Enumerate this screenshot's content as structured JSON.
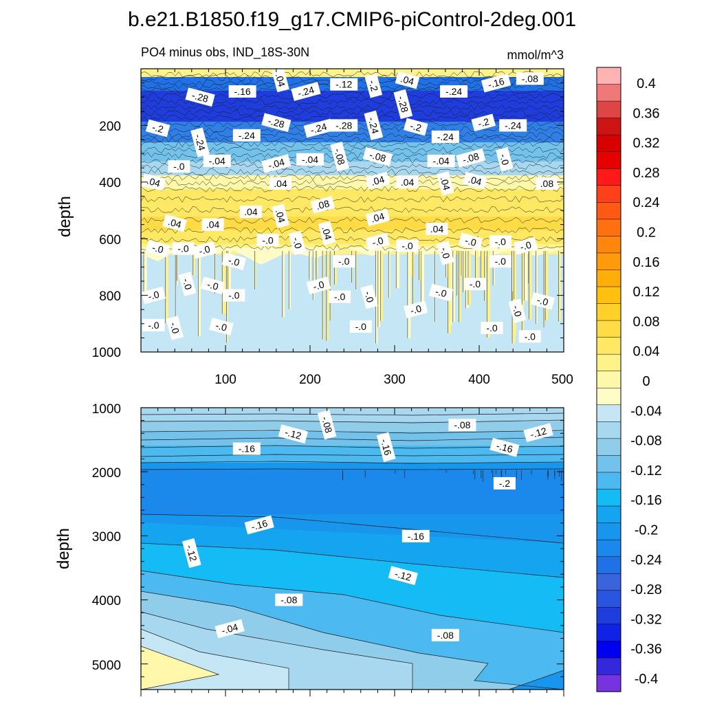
{
  "chart_data": {
    "type": "heatmap",
    "title": "b.e21.B1850.f19_g17.CMIP6-piControl-2deg.001",
    "left_subtitle": "PO4 minus obs, IND_18S-30N",
    "right_subtitle": "mmol/m^3",
    "colorbar": {
      "labels": [
        "0.4",
        "0.36",
        "0.32",
        "0.28",
        "0.24",
        "0.2",
        "0.16",
        "0.12",
        "0.08",
        "0.04",
        "0",
        "-0.04",
        "-0.08",
        "-0.12",
        "-0.16",
        "-0.2",
        "-0.24",
        "-0.28",
        "-0.32",
        "-0.36",
        "-0.4"
      ],
      "colors": [
        "#ffb3b3",
        "#f07878",
        "#de4545",
        "#cc1414",
        "#d60000",
        "#e60000",
        "#ff1a1a",
        "#ff4019",
        "#ff5a14",
        "#ff7010",
        "#ff860c",
        "#ff9a0a",
        "#ffad08",
        "#ffc010",
        "#ffcf2a",
        "#ffdc45",
        "#ffe864",
        "#fff288",
        "#fff8aa",
        "#fffcc8",
        "#c5e6f5",
        "#a8d8ef",
        "#90cdeb",
        "#72c2ec",
        "#4cb9f0",
        "#14bbf5",
        "#15a5f0",
        "#1896ee",
        "#1b88eb",
        "#2070e6",
        "#3a63dc",
        "#2a55e0",
        "#1e3ddc",
        "#0f22e6",
        "#0000f0",
        "#3428dc",
        "#7634e0"
      ]
    },
    "top_panel": {
      "ylabel": "depth",
      "xlim": [
        0,
        500
      ],
      "ylim": [
        0,
        1000
      ],
      "x_ticks": [
        "100",
        "200",
        "300",
        "400",
        "500"
      ],
      "y_ticks": [
        "200",
        "400",
        "600",
        "800",
        "1000"
      ],
      "contour_labels": [
        {
          "t": ".04",
          "x": 165,
          "y": 40
        },
        {
          "t": "-.28",
          "x": 70,
          "y": 100
        },
        {
          "t": "-.16",
          "x": 120,
          "y": 80
        },
        {
          "t": "-.24",
          "x": 195,
          "y": 80
        },
        {
          "t": "-.12",
          "x": 240,
          "y": 55
        },
        {
          "t": "-.2",
          "x": 275,
          "y": 60
        },
        {
          "t": ".04",
          "x": 315,
          "y": 40
        },
        {
          "t": "-.24",
          "x": 370,
          "y": 80
        },
        {
          "t": "-.16",
          "x": 420,
          "y": 50
        },
        {
          "t": "-.08",
          "x": 460,
          "y": 35
        },
        {
          "t": "-.28",
          "x": 310,
          "y": 125
        },
        {
          "t": "-.28",
          "x": 160,
          "y": 190
        },
        {
          "t": "-.24",
          "x": 125,
          "y": 235
        },
        {
          "t": "-.24",
          "x": 210,
          "y": 210
        },
        {
          "t": "-.28",
          "x": 240,
          "y": 200
        },
        {
          "t": "-.24",
          "x": 275,
          "y": 200
        },
        {
          "t": "-.2",
          "x": 325,
          "y": 205
        },
        {
          "t": "-.24",
          "x": 360,
          "y": 240
        },
        {
          "t": "-.2",
          "x": 405,
          "y": 190
        },
        {
          "t": "-.24",
          "x": 440,
          "y": 200
        },
        {
          "t": "-.24",
          "x": 70,
          "y": 260
        },
        {
          "t": "-.2",
          "x": 20,
          "y": 210
        },
        {
          "t": "-.04",
          "x": 90,
          "y": 325
        },
        {
          "t": "-.04",
          "x": 160,
          "y": 335
        },
        {
          "t": "-.04",
          "x": 200,
          "y": 320
        },
        {
          "t": "-.08",
          "x": 235,
          "y": 310
        },
        {
          "t": "-.08",
          "x": 280,
          "y": 310
        },
        {
          "t": "-.04",
          "x": 355,
          "y": 325
        },
        {
          "t": "-.08",
          "x": 390,
          "y": 315
        },
        {
          "t": "-.0",
          "x": 45,
          "y": 345
        },
        {
          "t": "-.0",
          "x": 430,
          "y": 320
        },
        {
          "t": ".04",
          "x": 15,
          "y": 400
        },
        {
          "t": ".04",
          "x": 165,
          "y": 405
        },
        {
          "t": ".04",
          "x": 280,
          "y": 395
        },
        {
          "t": ".04",
          "x": 315,
          "y": 400
        },
        {
          "t": ".04",
          "x": 360,
          "y": 405
        },
        {
          "t": ".04",
          "x": 395,
          "y": 395
        },
        {
          "t": ".08",
          "x": 480,
          "y": 405
        },
        {
          "t": ".08",
          "x": 215,
          "y": 480
        },
        {
          "t": ".04",
          "x": 130,
          "y": 505
        },
        {
          "t": ".04",
          "x": 165,
          "y": 520
        },
        {
          "t": ".04",
          "x": 40,
          "y": 545
        },
        {
          "t": ".04",
          "x": 85,
          "y": 550
        },
        {
          "t": ".04",
          "x": 280,
          "y": 525
        },
        {
          "t": ".04",
          "x": 350,
          "y": 565
        },
        {
          "t": ".04",
          "x": 220,
          "y": 580
        },
        {
          "t": "-.0",
          "x": 20,
          "y": 635
        },
        {
          "t": "-.0",
          "x": 50,
          "y": 635
        },
        {
          "t": "-.0",
          "x": 75,
          "y": 640
        },
        {
          "t": "-.0",
          "x": 150,
          "y": 605
        },
        {
          "t": "-.0",
          "x": 185,
          "y": 615
        },
        {
          "t": "-.0",
          "x": 110,
          "y": 680
        },
        {
          "t": "-.0",
          "x": 240,
          "y": 680
        },
        {
          "t": "-.0",
          "x": 280,
          "y": 610
        },
        {
          "t": "-.0",
          "x": 315,
          "y": 625
        },
        {
          "t": "-.0",
          "x": 360,
          "y": 650
        },
        {
          "t": "-.0",
          "x": 390,
          "y": 610
        },
        {
          "t": "-.0",
          "x": 425,
          "y": 610
        },
        {
          "t": "-.0",
          "x": 455,
          "y": 625
        },
        {
          "t": "-.0",
          "x": 425,
          "y": 680
        },
        {
          "t": "-.0",
          "x": 55,
          "y": 760
        },
        {
          "t": "-.0",
          "x": 85,
          "y": 765
        },
        {
          "t": "-.0",
          "x": 110,
          "y": 800
        },
        {
          "t": "-.0",
          "x": 210,
          "y": 765
        },
        {
          "t": "-.0",
          "x": 235,
          "y": 805
        },
        {
          "t": "-.0",
          "x": 270,
          "y": 805
        },
        {
          "t": "-.0",
          "x": 355,
          "y": 790
        },
        {
          "t": "-.0",
          "x": 395,
          "y": 760
        },
        {
          "t": "-.0",
          "x": 15,
          "y": 800
        },
        {
          "t": "-.0",
          "x": 15,
          "y": 905
        },
        {
          "t": "-.0",
          "x": 40,
          "y": 915
        },
        {
          "t": "-.0",
          "x": 95,
          "y": 910
        },
        {
          "t": "-.0",
          "x": 260,
          "y": 910
        },
        {
          "t": "-.0",
          "x": 325,
          "y": 850
        },
        {
          "t": "-.0",
          "x": 415,
          "y": 915
        },
        {
          "t": "-.0",
          "x": 445,
          "y": 855
        },
        {
          "t": "-.0",
          "x": 475,
          "y": 820
        },
        {
          "t": "-.0",
          "x": 460,
          "y": 945
        }
      ]
    },
    "bottom_panel": {
      "ylabel": "depth",
      "xlim": [
        0,
        500
      ],
      "ylim": [
        1000,
        5400
      ],
      "y_ticks": [
        "1000",
        "2000",
        "3000",
        "4000",
        "5000"
      ],
      "contour_labels": [
        {
          "t": "-.08",
          "x": 220,
          "y": 1265
        },
        {
          "t": "-.12",
          "x": 180,
          "y": 1410
        },
        {
          "t": "-.08",
          "x": 380,
          "y": 1270
        },
        {
          "t": "-.12",
          "x": 470,
          "y": 1390
        },
        {
          "t": "-.16",
          "x": 125,
          "y": 1640
        },
        {
          "t": "-.16",
          "x": 290,
          "y": 1615
        },
        {
          "t": "-.16",
          "x": 430,
          "y": 1620
        },
        {
          "t": "-.2",
          "x": 430,
          "y": 2180
        },
        {
          "t": "-.16",
          "x": 140,
          "y": 2830
        },
        {
          "t": "-.16",
          "x": 325,
          "y": 3005
        },
        {
          "t": "-.12",
          "x": 60,
          "y": 3270
        },
        {
          "t": "-.12",
          "x": 310,
          "y": 3620
        },
        {
          "t": "-.08",
          "x": 175,
          "y": 4000
        },
        {
          "t": "-.04",
          "x": 105,
          "y": 4450
        },
        {
          "t": "-.08",
          "x": 360,
          "y": 4550
        }
      ]
    }
  }
}
